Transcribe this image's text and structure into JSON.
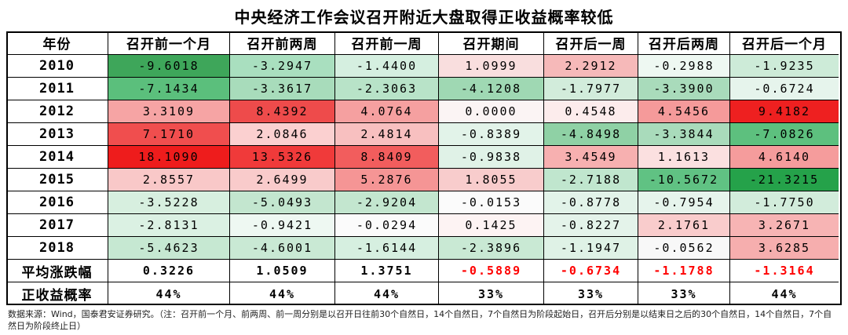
{
  "title": "中央经济工作会议召开附近大盘取得正收益概率较低",
  "table": {
    "header": [
      "年份",
      "召开前一个月",
      "召开前两周",
      "召开前一周",
      "召开期间",
      "召开后一周",
      "召开后两周",
      "召开后一个月"
    ],
    "rows": [
      [
        "2010",
        "-9.6018",
        "-3.2947",
        "-1.4400",
        "1.0999",
        "2.2912",
        "-0.2988",
        "-1.9235"
      ],
      [
        "2011",
        "-7.1434",
        "-3.3617",
        "-2.3063",
        "-4.1208",
        "-1.7977",
        "-3.3900",
        "-0.6724"
      ],
      [
        "2012",
        "3.3109",
        "8.4392",
        "4.0764",
        "0.0000",
        "0.4548",
        "4.5456",
        "9.4182"
      ],
      [
        "2013",
        "7.1710",
        "2.0846",
        "2.4814",
        "-0.8389",
        "-4.8498",
        "-3.3844",
        "-7.0826"
      ],
      [
        "2014",
        "18.1090",
        "13.5326",
        "8.8409",
        "-0.9838",
        "3.4549",
        "1.1613",
        "4.6140"
      ],
      [
        "2015",
        "2.8557",
        "2.6499",
        "5.2876",
        "1.8055",
        "-2.7188",
        "-10.5672",
        "-21.3215"
      ],
      [
        "2016",
        "-3.5228",
        "-5.0493",
        "-2.9204",
        "-0.0153",
        "-0.8778",
        "-0.7954",
        "-1.7750"
      ],
      [
        "2017",
        "-2.8131",
        "-0.9421",
        "-0.0294",
        "0.1425",
        "-0.8227",
        "2.1761",
        "3.2671"
      ],
      [
        "2018",
        "-5.4623",
        "-4.6001",
        "-1.6144",
        "-2.3896",
        "-1.1947",
        "-0.0562",
        "3.6285"
      ]
    ],
    "row_colors": [
      [
        "#3ea65a",
        "#a9dfbf",
        "#d5efe0",
        "#f9dede",
        "#f6b9b9",
        "#eef8f2",
        "#cdebd8"
      ],
      [
        "#5bbf7c",
        "#a8dcbb",
        "#b8e3c8",
        "#9fd8b3",
        "#d2ecdb",
        "#a9dbbb",
        "#e6f4ec"
      ],
      [
        "#f6a4a4",
        "#ee4b4b",
        "#f5a0a0",
        "#fbf4f4",
        "#fcecec",
        "#f59a9a",
        "#ee2020"
      ],
      [
        "#f04e4e",
        "#fbd0d0",
        "#f8c0c0",
        "#e2f3e9",
        "#8fd1a5",
        "#a9dbbb",
        "#5dc07e"
      ],
      [
        "#ee1c1c",
        "#f03a3a",
        "#f25d5d",
        "#e0f2e7",
        "#f7b0b0",
        "#fbe0e0",
        "#f59c9c"
      ],
      [
        "#f9c8c8",
        "#f9cbcb",
        "#f59595",
        "#f8cccc",
        "#c0e6ce",
        "#60c283",
        "#25a24a"
      ],
      [
        "#d7efdf",
        "#c3e6cf",
        "#c3e6cf",
        "#fbfbfb",
        "#e2f3e9",
        "#e6f4ec",
        "#d2ecdb"
      ],
      [
        "#dbf1e3",
        "#eef8f2",
        "#fbfbfb",
        "#fdf3f3",
        "#e4f3ea",
        "#f9cccc",
        "#f7b4b4"
      ],
      [
        "#c6e8d2",
        "#c9e9d4",
        "#d6efe0",
        "#c9e9d4",
        "#dff2e6",
        "#f8f8f8",
        "#f6aeae"
      ]
    ],
    "summary": [
      {
        "label": "平均涨跌幅",
        "values": [
          "0.3226",
          "1.0509",
          "1.3751",
          "-0.5889",
          "-0.6734",
          "-1.1788",
          "-1.3164"
        ],
        "colors": [
          "#000000",
          "#000000",
          "#000000",
          "#ff0000",
          "#ff0000",
          "#ff0000",
          "#ff0000"
        ]
      },
      {
        "label": "正收益概率",
        "values": [
          "44%",
          "44%",
          "44%",
          "33%",
          "33%",
          "33%",
          "44%"
        ],
        "colors": [
          "#000000",
          "#000000",
          "#000000",
          "#000000",
          "#000000",
          "#000000",
          "#000000"
        ]
      }
    ]
  },
  "footnote": "数据来源：Wind，国泰君安证券研究。（注：召开前一个月、前两周、前一周分别是以召开日往前30个自然日，14个自然日，7个自然日为阶段起始日，召开后分别是以结束日之后的30个自然日，14个自然日，7个自然日为阶段终止日）"
}
